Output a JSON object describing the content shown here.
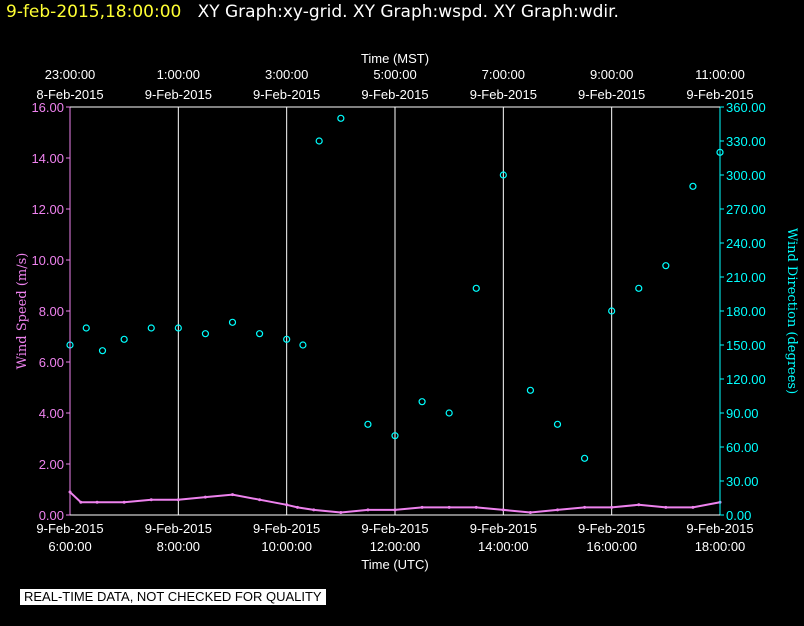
{
  "header": {
    "timestamp": "9-feb-2015,18:00:00",
    "titles": "XY Graph:xy-grid.  XY Graph:wspd.  XY Graph:wdir."
  },
  "disclaimer": "REAL-TIME DATA, NOT CHECKED FOR QUALITY",
  "colors": {
    "wind_speed": "#ee82ee",
    "wind_direction": "#00ffff",
    "grid": "#ffffff",
    "background": "#000000"
  },
  "chart_data": {
    "type": "scatter",
    "top_axis": {
      "label": "Time (MST)",
      "ticks": [
        {
          "time": "23:00:00",
          "date": "8-Feb-2015"
        },
        {
          "time": "1:00:00",
          "date": "9-Feb-2015"
        },
        {
          "time": "3:00:00",
          "date": "9-Feb-2015"
        },
        {
          "time": "5:00:00",
          "date": "9-Feb-2015"
        },
        {
          "time": "7:00:00",
          "date": "9-Feb-2015"
        },
        {
          "time": "9:00:00",
          "date": "9-Feb-2015"
        },
        {
          "time": "11:00:00",
          "date": "9-Feb-2015"
        }
      ]
    },
    "bottom_axis": {
      "label": "Time (UTC)",
      "ticks": [
        {
          "date": "9-Feb-2015",
          "time": "6:00:00"
        },
        {
          "date": "9-Feb-2015",
          "time": "8:00:00"
        },
        {
          "date": "9-Feb-2015",
          "time": "10:00:00"
        },
        {
          "date": "9-Feb-2015",
          "time": "12:00:00"
        },
        {
          "date": "9-Feb-2015",
          "time": "14:00:00"
        },
        {
          "date": "9-Feb-2015",
          "time": "16:00:00"
        },
        {
          "date": "9-Feb-2015",
          "time": "18:00:00"
        }
      ],
      "range_utc_hours": [
        6,
        18
      ]
    },
    "left_axis": {
      "label": "Wind Speed (m/s)",
      "ylim": [
        0,
        16
      ],
      "ticks": [
        "0.00",
        "2.00",
        "4.00",
        "6.00",
        "8.00",
        "10.00",
        "12.00",
        "14.00",
        "16.00"
      ]
    },
    "right_axis": {
      "label": "Wind Direction (degrees)",
      "ylim": [
        0,
        360
      ],
      "ticks": [
        "0.00",
        "30.00",
        "60.00",
        "90.00",
        "120.00",
        "150.00",
        "180.00",
        "210.00",
        "240.00",
        "270.00",
        "300.00",
        "330.00",
        "360.00"
      ]
    },
    "grid": "vertical lines at bottom-axis ticks",
    "series": [
      {
        "axis": "left",
        "marker": "line",
        "x_utc_hours": [
          6.0,
          6.2,
          6.5,
          7.0,
          7.5,
          8.0,
          8.5,
          9.0,
          9.5,
          10.0,
          10.2,
          10.5,
          11.0,
          11.5,
          12.0,
          12.5,
          13.0,
          13.5,
          14.0,
          14.5,
          15.0,
          15.5,
          16.0,
          16.5,
          17.0,
          17.5,
          18.0
        ],
        "values": [
          0.9,
          0.5,
          0.5,
          0.5,
          0.6,
          0.6,
          0.7,
          0.8,
          0.6,
          0.4,
          0.3,
          0.2,
          0.1,
          0.2,
          0.2,
          0.3,
          0.3,
          0.3,
          0.2,
          0.1,
          0.2,
          0.3,
          0.3,
          0.4,
          0.3,
          0.3,
          0.5
        ]
      },
      {
        "axis": "right",
        "marker": "circle",
        "x_utc_hours": [
          6.0,
          6.3,
          6.6,
          7.0,
          7.5,
          8.0,
          8.5,
          9.0,
          9.5,
          10.0,
          10.3,
          10.6,
          11.0,
          11.5,
          12.0,
          12.5,
          13.0,
          13.5,
          14.0,
          14.5,
          15.0,
          15.5,
          16.0,
          16.5,
          17.0,
          17.5,
          18.0
        ],
        "values": [
          150,
          165,
          145,
          155,
          165,
          165,
          160,
          170,
          160,
          155,
          150,
          330,
          350,
          80,
          70,
          100,
          90,
          200,
          300,
          110,
          80,
          50,
          180,
          200,
          220,
          290,
          320
        ]
      }
    ]
  }
}
